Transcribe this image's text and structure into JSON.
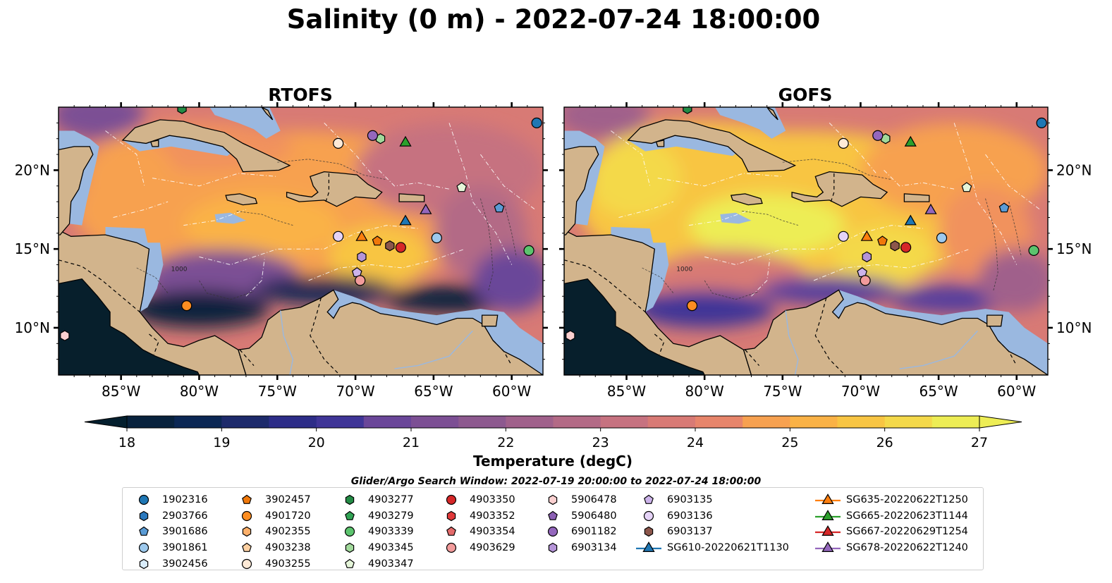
{
  "title": "Salinity (0 m) - 2022-07-24 18:00:00",
  "panels": [
    {
      "title": "RTOFS",
      "field": "rtofs"
    },
    {
      "title": "GOFS",
      "field": "gofs"
    }
  ],
  "map_axes": {
    "lon_range": [
      -89,
      -58
    ],
    "lat_range": [
      7,
      24
    ],
    "x_ticks": [
      -85,
      -80,
      -75,
      -70,
      -65,
      -60
    ],
    "x_tick_labels": [
      "85°W",
      "80°W",
      "75°W",
      "70°W",
      "65°W",
      "60°W"
    ],
    "y_ticks": [
      10,
      15,
      20
    ],
    "y_tick_labels": [
      "10°N",
      "15°N",
      "20°N"
    ],
    "contour_label": "1000"
  },
  "colors": {
    "land": "#d2b48c",
    "shallow_water": "#9ab8e0",
    "colormap": [
      "#041f2e",
      "#08223d",
      "#0b2754",
      "#1d2a6b",
      "#2d2d88",
      "#3f3597",
      "#553d9d",
      "#6a4699",
      "#7c4f94",
      "#8d598f",
      "#a0618b",
      "#b36a86",
      "#c67280",
      "#d87a75",
      "#e7856b",
      "#f1925d",
      "#f7a150",
      "#fab246",
      "#f8c543",
      "#f4d94a",
      "#eded55"
    ]
  },
  "colorbar": {
    "label": "Temperature (degC)",
    "min": 18,
    "max": 27,
    "ticks": [
      18,
      19,
      20,
      21,
      22,
      23,
      24,
      25,
      26,
      27
    ],
    "extend": "both"
  },
  "legend": {
    "title": "Glider/Argo Search Window: 2022-07-19 20:00:00 to 2022-07-24 18:00:00",
    "columns": [
      [
        {
          "label": "1902316",
          "marker": "circle",
          "color": "#1f77b4"
        },
        {
          "label": "2903766",
          "marker": "hexagon",
          "color": "#2a78bd"
        },
        {
          "label": "3901686",
          "marker": "pentagon",
          "color": "#5a9bd5"
        },
        {
          "label": "3901861",
          "marker": "circle",
          "color": "#9dc9ed"
        },
        {
          "label": "3902456",
          "marker": "hexagon",
          "color": "#d9ecfb"
        }
      ],
      [
        {
          "label": "3902457",
          "marker": "pentagon",
          "color": "#f0780a"
        },
        {
          "label": "4901720",
          "marker": "circle",
          "color": "#fd8d21"
        },
        {
          "label": "4902355",
          "marker": "hexagon",
          "color": "#fdb06a"
        },
        {
          "label": "4903238",
          "marker": "pentagon",
          "color": "#fdd0a2"
        },
        {
          "label": "4903255",
          "marker": "circle",
          "color": "#feead7"
        }
      ],
      [
        {
          "label": "4903277",
          "marker": "hexagon",
          "color": "#238b45"
        },
        {
          "label": "4903279",
          "marker": "pentagon",
          "color": "#31a354"
        },
        {
          "label": "4903339",
          "marker": "circle",
          "color": "#5cc46e"
        },
        {
          "label": "4903345",
          "marker": "hexagon",
          "color": "#a1d99b"
        },
        {
          "label": "4903347",
          "marker": "pentagon",
          "color": "#e5f5d9"
        }
      ],
      [
        {
          "label": "4903350",
          "marker": "circle",
          "color": "#d62728"
        },
        {
          "label": "4903352",
          "marker": "hexagon",
          "color": "#e0393a"
        },
        {
          "label": "4903354",
          "marker": "pentagon",
          "color": "#e46b6b"
        },
        {
          "label": "4903629",
          "marker": "circle",
          "color": "#f29b9b"
        }
      ],
      [
        {
          "label": "5906478",
          "marker": "hexagon",
          "color": "#fbd0d0"
        },
        {
          "label": "5906480",
          "marker": "pentagon",
          "color": "#8b5fb3"
        },
        {
          "label": "6901182",
          "marker": "circle",
          "color": "#9467bd"
        },
        {
          "label": "6903134",
          "marker": "hexagon",
          "color": "#b594d8"
        }
      ],
      [
        {
          "label": "6903135",
          "marker": "pentagon",
          "color": "#ccb3ea"
        },
        {
          "label": "6903136",
          "marker": "circle",
          "color": "#e5d3f7"
        },
        {
          "label": "6903137",
          "marker": "hexagon",
          "color": "#8c564b"
        },
        {
          "label": "SG610-20220621T1130",
          "marker": "line-triangle",
          "color": "#1f77b4"
        }
      ],
      [
        {
          "label": "SG635-20220622T1250",
          "marker": "line-triangle",
          "color": "#ff7f0e"
        },
        {
          "label": "SG665-20220623T1144",
          "marker": "line-triangle",
          "color": "#2ca02c"
        },
        {
          "label": "SG667-20220629T1254",
          "marker": "line-triangle",
          "color": "#d62728"
        },
        {
          "label": "SG678-20220622T1240",
          "marker": "line-triangle",
          "color": "#9467bd"
        }
      ]
    ]
  },
  "chart_data": {
    "type": "heatmap",
    "title": "Salinity (0 m) - 2022-07-24 18:00:00",
    "subplots": [
      "RTOFS",
      "GOFS"
    ],
    "colorbar_label": "Temperature (degC)",
    "colorbar_range": [
      18,
      27
    ],
    "xlim": [
      -89,
      -58
    ],
    "ylim": [
      7,
      24
    ],
    "points": [
      {
        "id": "1902316",
        "lon": -58.4,
        "lat": 23.0
      },
      {
        "id": "3901861",
        "lon": -64.8,
        "lat": 15.7
      },
      {
        "id": "3901686",
        "lon": -60.8,
        "lat": 17.6
      },
      {
        "id": "4903339",
        "lon": -58.9,
        "lat": 14.9
      },
      {
        "id": "4903347",
        "lon": -63.2,
        "lat": 18.9
      },
      {
        "id": "4903277",
        "lon": -81.1,
        "lat": 23.9
      },
      {
        "id": "4903345",
        "lon": -68.4,
        "lat": 22.0
      },
      {
        "id": "6901182",
        "lon": -68.9,
        "lat": 22.2
      },
      {
        "id": "5906478",
        "lon": -88.6,
        "lat": 9.5
      },
      {
        "id": "4903255",
        "lon": -71.1,
        "lat": 21.7
      },
      {
        "id": "4901720",
        "lon": -80.8,
        "lat": 11.4
      },
      {
        "id": "4903350",
        "lon": -67.1,
        "lat": 15.1
      },
      {
        "id": "6903137",
        "lon": -67.8,
        "lat": 15.2
      },
      {
        "id": "3902457",
        "lon": -68.6,
        "lat": 15.5
      },
      {
        "id": "6903136",
        "lon": -71.1,
        "lat": 15.8
      },
      {
        "id": "6903134",
        "lon": -69.6,
        "lat": 14.5
      },
      {
        "id": "6903135",
        "lon": -69.9,
        "lat": 13.5
      },
      {
        "id": "4903629",
        "lon": -69.7,
        "lat": 13.0
      },
      {
        "id": "SG635-20220622T1250",
        "lon": -69.6,
        "lat": 15.8
      },
      {
        "id": "SG665-20220623T1144",
        "lon": -66.8,
        "lat": 21.8
      },
      {
        "id": "SG610-20220621T1130",
        "lon": -66.8,
        "lat": 16.8
      },
      {
        "id": "SG678-20220622T1240",
        "lon": -65.5,
        "lat": 17.5
      }
    ]
  }
}
